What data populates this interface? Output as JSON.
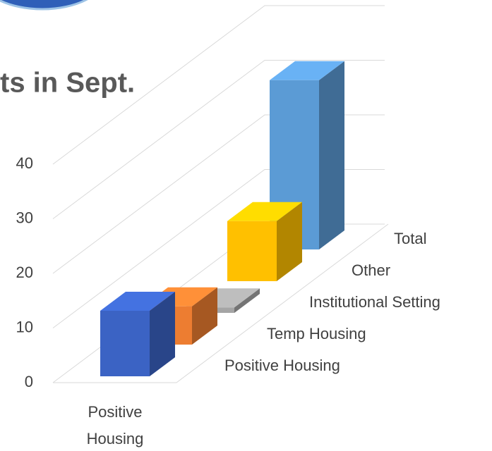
{
  "chart_data": {
    "type": "bar3d",
    "title": "ts in Sept.",
    "categories": [
      "Positive Housing"
    ],
    "series": [
      {
        "name": "Positive Housing",
        "color": "#3b63c4",
        "values": [
          12
        ]
      },
      {
        "name": "Temp Housing",
        "color": "#ed7d31",
        "values": [
          7
        ]
      },
      {
        "name": "Institutional Setting",
        "color": "#a5a5a5",
        "values": [
          1
        ]
      },
      {
        "name": "Other",
        "color": "#ffc000",
        "values": [
          11
        ]
      },
      {
        "name": "Total",
        "color": "#5b9bd5",
        "values": [
          31
        ]
      }
    ],
    "ylim": [
      0,
      40
    ],
    "yticks": [
      0,
      10,
      20,
      30,
      40
    ],
    "grid": true
  }
}
